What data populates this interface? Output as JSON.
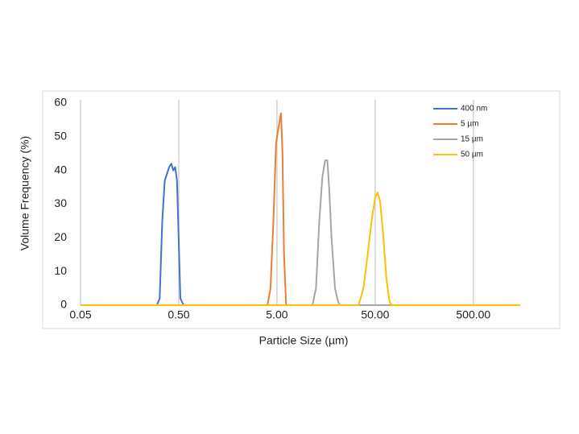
{
  "chart_data": {
    "type": "line",
    "xlabel": "Particle Size (µm)",
    "ylabel": "Volume Frequency (%)",
    "xscale": "log",
    "xlim": [
      0.05,
      1500
    ],
    "ylim": [
      0,
      60
    ],
    "xticks": [
      {
        "value": 0.05,
        "label": "0.05"
      },
      {
        "value": 0.5,
        "label": "0.50"
      },
      {
        "value": 5,
        "label": "5.00"
      },
      {
        "value": 50,
        "label": "50.00"
      },
      {
        "value": 500,
        "label": "500.00"
      }
    ],
    "yticks": [
      0,
      10,
      20,
      30,
      40,
      50,
      60
    ],
    "grid": true,
    "legend": "upper right",
    "series": [
      {
        "name": "400 nm",
        "color": "#4472c4",
        "x": [
          0.05,
          0.3,
          0.32,
          0.34,
          0.36,
          0.4,
          0.42,
          0.44,
          0.46,
          0.48,
          0.52,
          0.56,
          1500
        ],
        "values": [
          0,
          0,
          2,
          25,
          37,
          41,
          42,
          40,
          41,
          37,
          2,
          0,
          0
        ]
      },
      {
        "name": "5 µm",
        "color": "#ed7d31",
        "x": [
          0.05,
          4.0,
          4.3,
          4.6,
          4.9,
          5.2,
          5.5,
          5.7,
          5.9,
          6.2,
          1500
        ],
        "values": [
          0,
          0,
          5,
          25,
          48,
          53,
          57,
          45,
          15,
          0,
          0
        ]
      },
      {
        "name": "15 µm",
        "color": "#a5a5a5",
        "x": [
          0.05,
          11.5,
          12.5,
          13.5,
          14.5,
          15.5,
          16.3,
          17,
          18,
          19.5,
          21,
          22,
          1500
        ],
        "values": [
          0,
          0,
          5,
          25,
          38,
          43,
          43,
          35,
          20,
          5,
          1,
          0,
          0
        ]
      },
      {
        "name": "50 µm",
        "color": "#ffc000",
        "x": [
          0.05,
          34,
          38,
          42,
          46,
          50,
          53,
          56,
          60,
          65,
          70,
          74,
          1500
        ],
        "values": [
          0,
          0,
          5,
          15,
          25,
          32,
          33.5,
          31,
          22,
          8,
          1,
          0,
          0
        ]
      }
    ]
  }
}
